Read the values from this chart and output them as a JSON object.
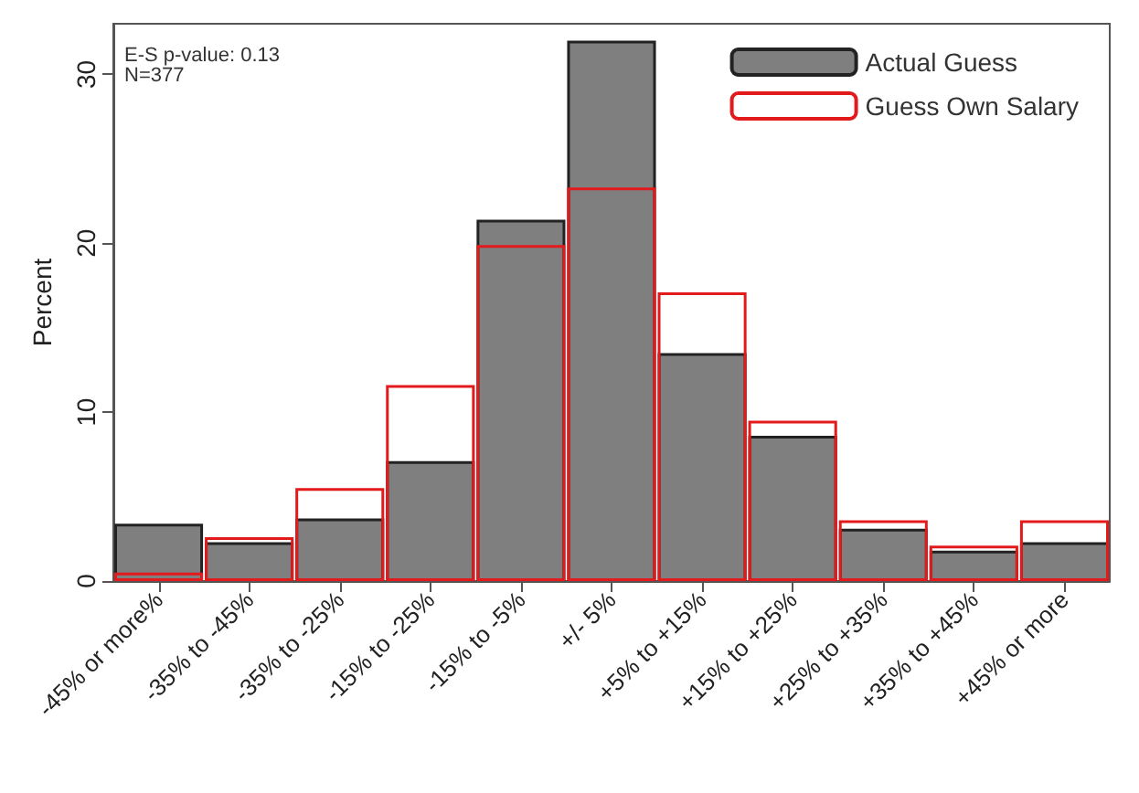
{
  "chart_data": {
    "type": "bar",
    "ylabel": "Percent",
    "categories": [
      "-45% or more%",
      "-35% to -45%",
      "-35% to -25%",
      "-15% to -25%",
      "-15% to -5%",
      "+/- 5%",
      "+5% to +15%",
      "+15% to +25%",
      "+25% to +35%",
      "+35% to +45%",
      "+45% or more"
    ],
    "series": [
      {
        "name": "Actual Guess",
        "color": "#7f7f7f",
        "values": [
          3.4,
          2.3,
          3.7,
          7.1,
          21.4,
          32.0,
          13.5,
          8.6,
          3.1,
          1.8,
          2.3
        ]
      },
      {
        "name": "Guess Own Salary",
        "color": "#e31a1c",
        "values": [
          0.5,
          2.6,
          5.5,
          11.6,
          19.9,
          23.3,
          17.1,
          9.5,
          3.6,
          2.1,
          3.6
        ]
      }
    ],
    "ylim": [
      0,
      33
    ],
    "yticks": [
      0,
      10,
      20,
      30
    ],
    "grid": false,
    "legend": "top right",
    "annotations": [
      "E-S p-value: 0.13\nN=377"
    ]
  }
}
